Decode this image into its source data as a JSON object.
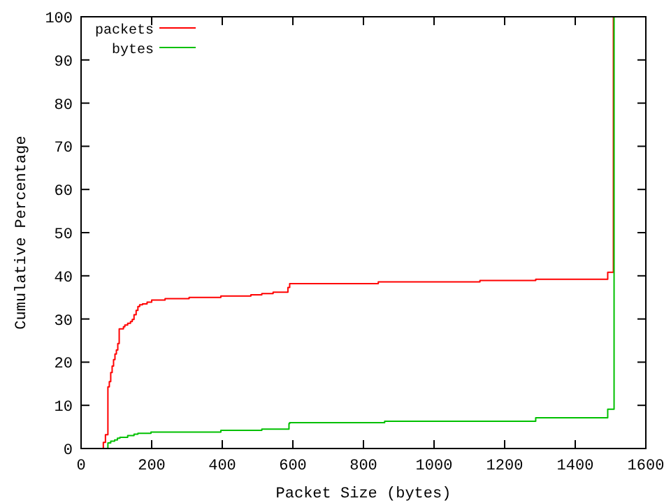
{
  "chart_data": {
    "type": "step",
    "xlabel": "Packet Size (bytes)",
    "ylabel": "Cumulative Percentage",
    "xlim": [
      0,
      1600
    ],
    "ylim": [
      0,
      100
    ],
    "xticks": [
      0,
      200,
      400,
      600,
      800,
      1000,
      1200,
      1400,
      1600
    ],
    "yticks": [
      0,
      10,
      20,
      30,
      40,
      50,
      60,
      70,
      80,
      90,
      100
    ],
    "grid": false,
    "legend": "top left",
    "line_style": "solid",
    "marker": "none",
    "series": [
      {
        "name": "packets",
        "color": "#ff0000",
        "x": [
          58,
          63,
          69,
          76,
          80,
          84,
          88,
          92,
          96,
          100,
          104,
          108,
          120,
          124,
          132,
          140,
          145,
          150,
          156,
          161,
          166,
          174,
          187,
          200,
          238,
          306,
          396,
          481,
          512,
          544,
          586,
          591,
          842,
          1130,
          1288,
          1492,
          1508
        ],
        "values": [
          0,
          1.4,
          3.2,
          14.3,
          15.5,
          17.6,
          19.1,
          20.6,
          21.9,
          22.8,
          24.3,
          27.7,
          28.2,
          28.6,
          29,
          29.4,
          29.9,
          31,
          32,
          32.9,
          33.3,
          33.5,
          33.9,
          34.4,
          34.7,
          35,
          35.3,
          35.6,
          35.9,
          36.2,
          37.3,
          38.2,
          38.6,
          38.9,
          39.2,
          40.8,
          100
        ]
      },
      {
        "name": "bytes",
        "color": "#00c000",
        "x": [
          69,
          76,
          84,
          95,
          103,
          110,
          132,
          150,
          161,
          198,
          396,
          512,
          589,
          591,
          860,
          1288,
          1492,
          1510
        ],
        "values": [
          0,
          1.3,
          1.7,
          2,
          2.4,
          2.6,
          3,
          3.3,
          3.5,
          3.8,
          4.2,
          4.5,
          5.8,
          6,
          6.3,
          7.1,
          9.1,
          100
        ]
      }
    ]
  }
}
